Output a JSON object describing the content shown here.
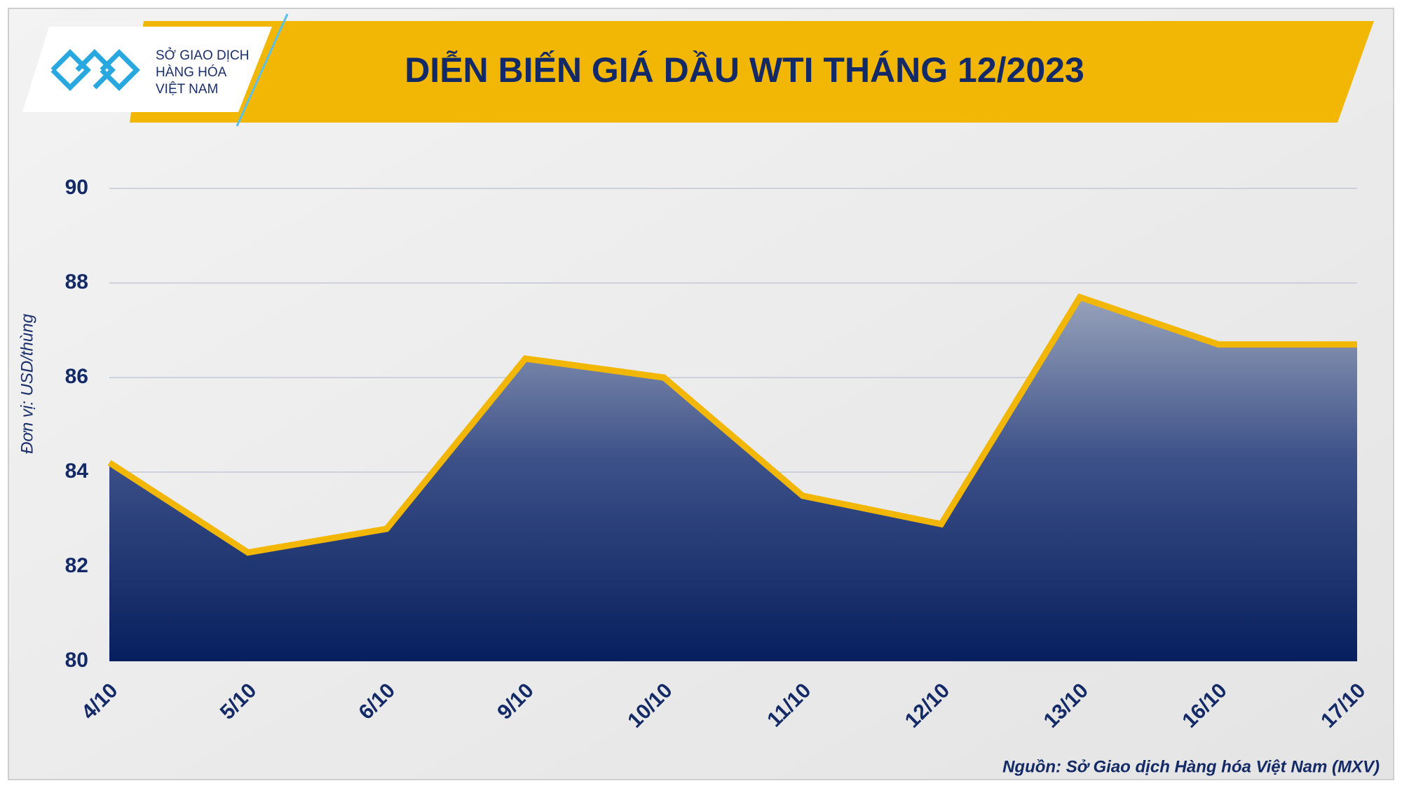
{
  "logo": {
    "lines": [
      "SỞ GIAO DỊCH",
      "HÀNG HÓA",
      "VIỆT NAM"
    ]
  },
  "chart_data": {
    "type": "area",
    "title": "DIỄN BIẾN GIÁ DẦU WTI THÁNG 12/2023",
    "y_label": "Đơn vị: USD/thùng",
    "source": "Nguồn: Sở Giao dịch Hàng hóa Việt Nam (MXV)",
    "categories": [
      "4/10",
      "5/10",
      "6/10",
      "9/10",
      "10/10",
      "11/10",
      "12/10",
      "13/10",
      "16/10",
      "17/10"
    ],
    "values": [
      84.2,
      82.3,
      82.8,
      86.4,
      86.0,
      83.5,
      82.9,
      87.7,
      86.7,
      86.7
    ],
    "color": "#f2b705",
    "ylim": [
      80,
      90
    ],
    "yticks": [
      80,
      82,
      84,
      86,
      88,
      90
    ],
    "grid": true
  }
}
